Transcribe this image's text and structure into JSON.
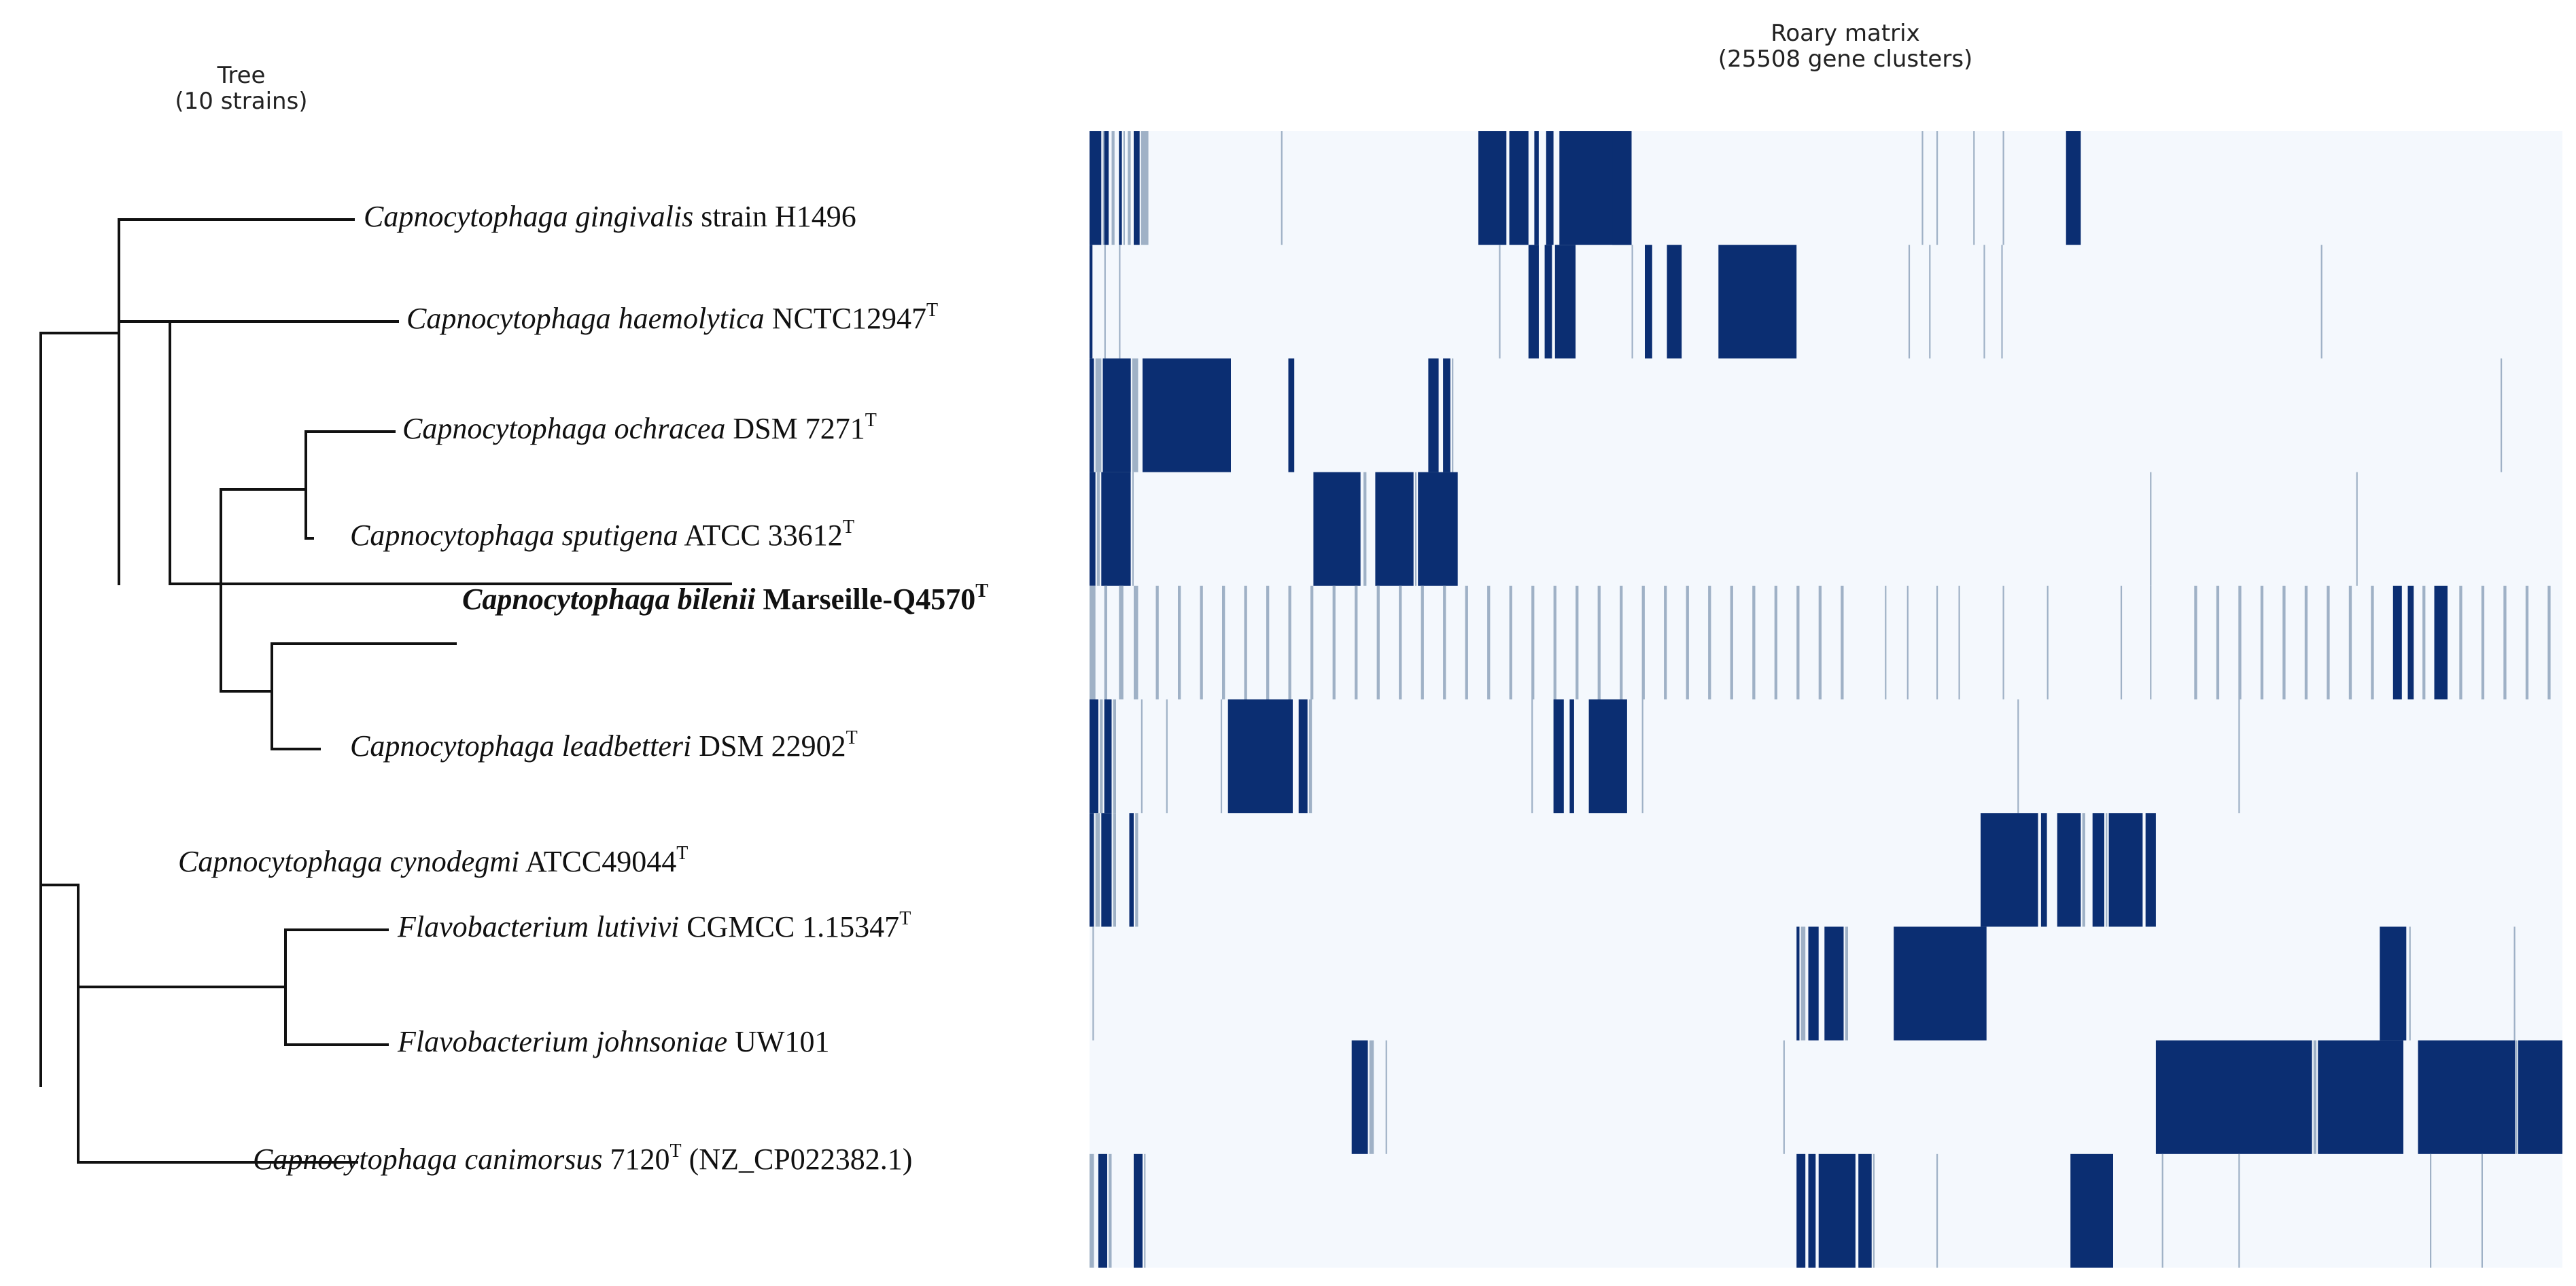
{
  "tree_panel": {
    "title": "Tree",
    "subtitle": "(10 strains)"
  },
  "matrix_panel": {
    "title": "Roary matrix",
    "subtitle": "(25508 gene clusters)"
  },
  "colors": {
    "present": "#0b2e72",
    "absent": "#f4f8fd",
    "partial": "#9fb1c6"
  },
  "strains": [
    {
      "genus": "Capnocytophaga",
      "species": "gingivalis",
      "strain": "strain H1496",
      "sup": "",
      "extra": "",
      "bold": false
    },
    {
      "genus": "Capnocytophaga",
      "species": "haemolytica",
      "strain": "NCTC12947",
      "sup": "T",
      "extra": "",
      "bold": false
    },
    {
      "genus": "Capnocytophaga",
      "species": "ochracea",
      "strain": "DSM 7271",
      "sup": "T",
      "extra": "",
      "bold": false
    },
    {
      "genus": "Capnocytophaga",
      "species": "sputigena",
      "strain": "ATCC 33612",
      "sup": "T",
      "extra": "",
      "bold": false
    },
    {
      "genus": "Capnocytophaga",
      "species": "bilenii",
      "strain": "Marseille-Q4570",
      "sup": "T",
      "extra": "",
      "bold": true
    },
    {
      "genus": "Capnocytophaga",
      "species": "leadbetteri",
      "strain": "DSM 22902",
      "sup": "T",
      "extra": "",
      "bold": false
    },
    {
      "genus": "Capnocytophaga",
      "species": "cynodegmi",
      "strain": "ATCC49044",
      "sup": "T",
      "extra": "",
      "bold": false
    },
    {
      "genus": "Flavobacterium",
      "species": "lutivivi",
      "strain": "CGMCC 1.15347",
      "sup": "T",
      "extra": "",
      "bold": false
    },
    {
      "genus": "Flavobacterium",
      "species": "johnsoniae",
      "strain": "UW101",
      "sup": "",
      "extra": "",
      "bold": false
    },
    {
      "genus": "Capnocytophaga",
      "species": "canimorsus",
      "strain": "7120",
      "sup": "T",
      "extra": " (NZ_CP022382.1)",
      "bold": false
    }
  ],
  "matrix_rows": [
    {
      "present": [
        [
          0.0,
          0.8
        ],
        [
          1.0,
          1.3
        ],
        [
          2.0,
          2.2
        ],
        [
          3.0,
          3.4
        ],
        [
          26.4,
          28.3
        ],
        [
          28.5,
          29.8
        ],
        [
          30.2,
          30.5
        ],
        [
          31.0,
          31.5
        ],
        [
          31.9,
          36.8
        ],
        [
          35.5,
          36.8
        ],
        [
          66.3,
          67.3
        ]
      ],
      "partial": [
        [
          0.9,
          1.0
        ],
        [
          1.5,
          1.7
        ],
        [
          2.3,
          2.4
        ],
        [
          2.6,
          2.8
        ],
        [
          3.5,
          4.0
        ],
        [
          13.0,
          13.1
        ],
        [
          56.5,
          56.6
        ],
        [
          57.5,
          57.6
        ],
        [
          60.0,
          60.1
        ],
        [
          62.0,
          62.1
        ]
      ]
    },
    {
      "present": [
        [
          0.0,
          0.2
        ],
        [
          29.8,
          30.5
        ],
        [
          30.9,
          31.4
        ],
        [
          31.6,
          33.0
        ],
        [
          37.7,
          38.2
        ],
        [
          39.2,
          40.2
        ],
        [
          42.7,
          48.0
        ]
      ],
      "partial": [
        [
          1.0,
          1.1
        ],
        [
          2.0,
          2.1
        ],
        [
          27.8,
          27.9
        ],
        [
          36.8,
          36.9
        ],
        [
          55.6,
          55.7
        ],
        [
          57.0,
          57.1
        ],
        [
          60.7,
          60.8
        ],
        [
          61.9,
          62.0
        ],
        [
          83.6,
          83.7
        ]
      ]
    },
    {
      "present": [
        [
          0.0,
          0.3
        ],
        [
          0.9,
          2.8
        ],
        [
          3.6,
          9.6
        ],
        [
          13.5,
          13.9
        ],
        [
          23.0,
          23.7
        ],
        [
          24.0,
          24.5
        ]
      ],
      "partial": [
        [
          0.4,
          0.8
        ],
        [
          2.9,
          3.3
        ],
        [
          24.6,
          24.7
        ],
        [
          95.8,
          95.9
        ]
      ]
    },
    {
      "present": [
        [
          0.0,
          0.4
        ],
        [
          0.8,
          2.8
        ],
        [
          15.2,
          18.4
        ],
        [
          19.4,
          22.0
        ],
        [
          22.3,
          25.0
        ]
      ],
      "partial": [
        [
          0.5,
          0.7
        ],
        [
          2.9,
          3.0
        ],
        [
          18.6,
          18.8
        ],
        [
          22.1,
          22.2
        ],
        [
          72.0,
          72.1
        ],
        [
          86.0,
          86.1
        ]
      ]
    },
    {
      "present": [
        [
          88.5,
          89.1
        ],
        [
          89.5,
          89.9
        ],
        [
          91.3,
          92.2
        ]
      ],
      "partial": [
        [
          0.0,
          0.4
        ],
        [
          1.0,
          1.2
        ],
        [
          2.0,
          2.3
        ],
        [
          3.0,
          3.3
        ],
        [
          4.5,
          4.7
        ],
        [
          6.0,
          6.2
        ],
        [
          7.5,
          7.7
        ],
        [
          9.0,
          9.2
        ],
        [
          10.5,
          10.7
        ],
        [
          12.0,
          12.2
        ],
        [
          13.5,
          13.7
        ],
        [
          15.0,
          15.2
        ],
        [
          16.5,
          16.7
        ],
        [
          18.0,
          18.2
        ],
        [
          19.5,
          19.7
        ],
        [
          21.0,
          21.2
        ],
        [
          22.5,
          22.7
        ],
        [
          24.0,
          24.2
        ],
        [
          25.5,
          25.7
        ],
        [
          27.0,
          27.2
        ],
        [
          28.5,
          28.7
        ],
        [
          30.0,
          30.2
        ],
        [
          31.5,
          31.7
        ],
        [
          33.0,
          33.2
        ],
        [
          34.5,
          34.7
        ],
        [
          36.0,
          36.2
        ],
        [
          37.5,
          37.7
        ],
        [
          39.0,
          39.2
        ],
        [
          40.5,
          40.7
        ],
        [
          42.0,
          42.2
        ],
        [
          43.5,
          43.7
        ],
        [
          45.0,
          45.2
        ],
        [
          46.5,
          46.7
        ],
        [
          48.0,
          48.2
        ],
        [
          49.5,
          49.7
        ],
        [
          51.0,
          51.2
        ],
        [
          54.0,
          54.1
        ],
        [
          55.5,
          55.6
        ],
        [
          57.5,
          57.6
        ],
        [
          59.0,
          59.1
        ],
        [
          62.0,
          62.1
        ],
        [
          65.0,
          65.1
        ],
        [
          70.0,
          70.1
        ],
        [
          72.0,
          72.1
        ],
        [
          75.0,
          75.2
        ],
        [
          76.5,
          76.7
        ],
        [
          78.0,
          78.2
        ],
        [
          79.5,
          79.7
        ],
        [
          81.0,
          81.2
        ],
        [
          82.5,
          82.7
        ],
        [
          84.0,
          84.2
        ],
        [
          85.5,
          85.7
        ],
        [
          87.0,
          87.2
        ],
        [
          90.5,
          90.7
        ],
        [
          93.0,
          93.2
        ],
        [
          94.5,
          94.7
        ],
        [
          96.0,
          96.2
        ],
        [
          97.5,
          97.7
        ],
        [
          99.0,
          99.2
        ]
      ]
    },
    {
      "present": [
        [
          0.0,
          0.6
        ],
        [
          1.0,
          1.5
        ],
        [
          9.4,
          13.8
        ],
        [
          14.2,
          14.8
        ],
        [
          31.5,
          32.2
        ],
        [
          32.6,
          32.9
        ],
        [
          33.9,
          36.5
        ]
      ],
      "partial": [
        [
          0.7,
          0.9
        ],
        [
          1.6,
          1.8
        ],
        [
          3.5,
          3.6
        ],
        [
          5.2,
          5.3
        ],
        [
          8.9,
          9.0
        ],
        [
          14.9,
          15.1
        ],
        [
          30.0,
          30.1
        ],
        [
          37.5,
          37.6
        ],
        [
          63.0,
          63.1
        ],
        [
          78.0,
          78.1
        ]
      ]
    },
    {
      "present": [
        [
          0.0,
          0.3
        ],
        [
          0.8,
          1.5
        ],
        [
          2.7,
          3.0
        ],
        [
          60.5,
          64.4
        ],
        [
          64.6,
          65.0
        ],
        [
          65.7,
          67.3
        ],
        [
          68.1,
          68.9
        ],
        [
          69.2,
          71.5
        ],
        [
          71.7,
          72.4
        ]
      ],
      "partial": [
        [
          0.4,
          0.7
        ],
        [
          1.6,
          1.8
        ],
        [
          3.1,
          3.3
        ],
        [
          67.4,
          67.6
        ],
        [
          69.0,
          69.1
        ]
      ]
    },
    {
      "present": [
        [
          48.0,
          48.2
        ],
        [
          48.8,
          49.5
        ],
        [
          49.9,
          51.2
        ],
        [
          54.6,
          60.9
        ],
        [
          87.6,
          89.4
        ]
      ],
      "partial": [
        [
          0.2,
          0.3
        ],
        [
          48.3,
          48.6
        ],
        [
          51.3,
          51.5
        ],
        [
          89.6,
          89.7
        ],
        [
          96.7,
          96.8
        ]
      ]
    },
    {
      "present": [
        [
          17.8,
          18.9
        ],
        [
          72.4,
          83.0
        ],
        [
          83.4,
          89.2
        ],
        [
          90.2,
          96.8
        ],
        [
          97.0,
          100.0
        ]
      ],
      "partial": [
        [
          19.0,
          19.3
        ],
        [
          20.1,
          20.2
        ],
        [
          47.1,
          47.2
        ],
        [
          83.1,
          83.3
        ],
        [
          96.85,
          96.95
        ]
      ]
    },
    {
      "present": [
        [
          0.6,
          1.2
        ],
        [
          3.0,
          3.6
        ],
        [
          48.0,
          48.6
        ],
        [
          48.8,
          49.3
        ],
        [
          49.5,
          52.0
        ],
        [
          52.2,
          53.1
        ],
        [
          66.6,
          69.5
        ]
      ],
      "partial": [
        [
          0.0,
          0.3
        ],
        [
          1.3,
          1.5
        ],
        [
          3.7,
          3.8
        ],
        [
          53.2,
          53.3
        ],
        [
          57.5,
          57.6
        ],
        [
          72.8,
          72.9
        ],
        [
          78.0,
          78.1
        ],
        [
          91.0,
          91.1
        ],
        [
          94.5,
          94.6
        ]
      ]
    }
  ]
}
